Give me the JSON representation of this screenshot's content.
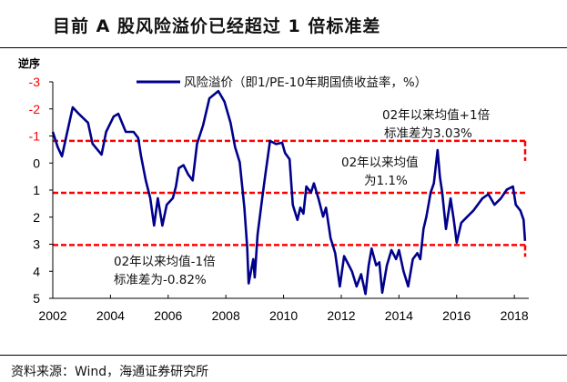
{
  "title": "目前 A 股风险溢价已经超过 1 倍标准差",
  "source": "资料来源：Wind，海通证券研究所",
  "chart_data": {
    "type": "line",
    "title": "目前 A 股风险溢价已经超过 1 倍标准差",
    "ylabel": "逆序",
    "xlabel": "",
    "y_reversed": true,
    "ylim": [
      -3,
      5
    ],
    "xlim": [
      2002,
      2018.5
    ],
    "grid": false,
    "legend_position": "top",
    "x_ticks": [
      "2002",
      "2004",
      "2006",
      "2008",
      "2010",
      "2012",
      "2014",
      "2016",
      "2018"
    ],
    "y_ticks": [
      "-3",
      "-2",
      "-1",
      "0",
      "1",
      "2",
      "3",
      "4",
      "5"
    ],
    "series": [
      {
        "name": "风险溢价（即1/PE-10年期国债收益率，%）",
        "color": "#00008B",
        "x": [
          2002.0,
          2002.17,
          2002.32,
          2002.48,
          2002.69,
          2002.9,
          2003.22,
          2003.38,
          2003.69,
          2003.85,
          2004.11,
          2004.27,
          2004.53,
          2004.8,
          2004.96,
          2005.06,
          2005.22,
          2005.38,
          2005.51,
          2005.64,
          2005.8,
          2005.95,
          2006.16,
          2006.27,
          2006.37,
          2006.53,
          2006.69,
          2006.85,
          2007.0,
          2007.21,
          2007.43,
          2007.74,
          2007.95,
          2008.16,
          2008.32,
          2008.48,
          2008.64,
          2008.74,
          2008.79,
          2008.95,
          2009.0,
          2009.1,
          2009.26,
          2009.37,
          2009.53,
          2009.74,
          2009.95,
          2010.05,
          2010.21,
          2010.32,
          2010.48,
          2010.58,
          2010.69,
          2010.79,
          2010.95,
          2011.05,
          2011.21,
          2011.37,
          2011.47,
          2011.63,
          2011.79,
          2011.95,
          2012.1,
          2012.21,
          2012.37,
          2012.53,
          2012.69,
          2012.84,
          2012.95,
          2013.05,
          2013.21,
          2013.32,
          2013.42,
          2013.58,
          2013.74,
          2013.9,
          2014.0,
          2014.16,
          2014.32,
          2014.48,
          2014.64,
          2014.74,
          2014.85,
          2014.95,
          2015.1,
          2015.21,
          2015.34,
          2015.42,
          2015.5,
          2015.63,
          2015.79,
          2015.9,
          2016.0,
          2016.16,
          2016.37,
          2016.58,
          2016.89,
          2017.1,
          2017.31,
          2017.53,
          2017.74,
          2017.95,
          2018.05,
          2018.21,
          2018.32,
          2018.37
        ],
        "y": [
          -1.15,
          -0.59,
          -0.25,
          -1.04,
          -2.06,
          -1.82,
          -1.49,
          -0.71,
          -0.31,
          -1.15,
          -1.72,
          -1.82,
          -1.15,
          -1.15,
          -0.93,
          -0.25,
          0.63,
          1.3,
          2.31,
          1.3,
          2.31,
          1.54,
          1.3,
          0.87,
          0.19,
          0.08,
          0.42,
          0.64,
          -0.71,
          -1.39,
          -2.39,
          -2.66,
          -2.27,
          -1.49,
          -0.59,
          -0.03,
          1.65,
          3.11,
          4.45,
          3.55,
          4.23,
          2.65,
          1.3,
          0.42,
          -0.82,
          -0.7,
          -0.75,
          -0.37,
          -0.14,
          1.54,
          2.1,
          1.65,
          1.87,
          0.87,
          1.09,
          0.75,
          1.31,
          1.98,
          1.65,
          2.77,
          3.33,
          4.56,
          3.44,
          3.67,
          4.0,
          4.56,
          4.11,
          4.84,
          3.78,
          3.16,
          3.78,
          3.67,
          4.79,
          3.78,
          3.22,
          3.55,
          3.22,
          4.0,
          4.56,
          3.55,
          3.33,
          3.55,
          2.44,
          1.98,
          1.09,
          0.75,
          -0.48,
          0.53,
          1.09,
          2.44,
          1.31,
          2.1,
          2.94,
          2.21,
          1.98,
          1.76,
          1.31,
          1.15,
          1.54,
          1.31,
          0.98,
          0.87,
          1.54,
          1.76,
          2.1,
          2.88
        ]
      }
    ],
    "reference_lines": [
      {
        "value": -0.82,
        "color": "#FF0000",
        "style": "dashed"
      },
      {
        "value": 1.1,
        "color": "#FF0000",
        "style": "dashed"
      },
      {
        "value": 3.03,
        "color": "#FF0000",
        "style": "dashed"
      }
    ],
    "annotations": {
      "upper": [
        "02年以来均值+1倍",
        "标准差为3.03%"
      ],
      "mean": [
        "02年以来均值",
        "为1.1%"
      ],
      "lower": [
        "02年以来均值-1倍",
        "标准差为-0.82%"
      ]
    },
    "colors": {
      "negative_tick": "#FF0000",
      "tick": "#000000"
    }
  }
}
